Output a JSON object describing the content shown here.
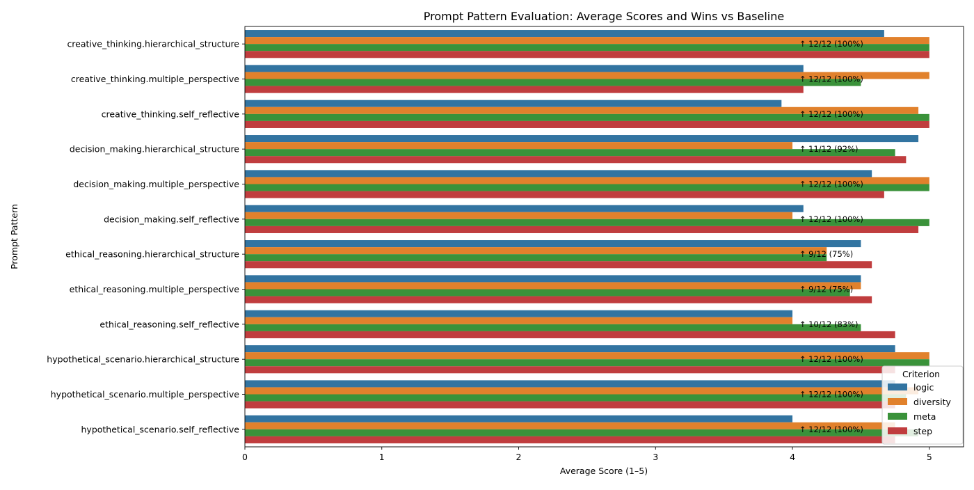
{
  "chart_data": {
    "type": "bar",
    "orientation": "horizontal",
    "title": "Prompt Pattern Evaluation: Average Scores and Wins vs Baseline",
    "xlabel": "Average Score (1–5)",
    "ylabel": "Prompt Pattern",
    "xlim": [
      0,
      5.25
    ],
    "xticks": [
      "0",
      "1",
      "2",
      "3",
      "4",
      "5"
    ],
    "grid": false,
    "legend": {
      "title": "Criterion",
      "position": "lower-right"
    },
    "categories": [
      "creative_thinking.hierarchical_structure",
      "creative_thinking.multiple_perspective",
      "creative_thinking.self_reflective",
      "decision_making.hierarchical_structure",
      "decision_making.multiple_perspective",
      "decision_making.self_reflective",
      "ethical_reasoning.hierarchical_structure",
      "ethical_reasoning.multiple_perspective",
      "ethical_reasoning.self_reflective",
      "hypothetical_scenario.hierarchical_structure",
      "hypothetical_scenario.multiple_perspective",
      "hypothetical_scenario.self_reflective"
    ],
    "series": [
      {
        "name": "logic",
        "color": "#3274a1",
        "values": [
          4.67,
          4.08,
          3.92,
          4.92,
          4.58,
          4.08,
          4.5,
          4.5,
          4.0,
          4.75,
          4.75,
          4.0
        ]
      },
      {
        "name": "diversity",
        "color": "#e1812c",
        "values": [
          5.0,
          5.0,
          4.92,
          4.0,
          5.0,
          4.0,
          4.25,
          4.5,
          4.0,
          5.0,
          4.92,
          4.75
        ]
      },
      {
        "name": "meta",
        "color": "#3a923a",
        "values": [
          5.0,
          4.5,
          5.0,
          4.75,
          5.0,
          5.0,
          4.25,
          4.42,
          4.5,
          5.0,
          4.83,
          4.92
        ]
      },
      {
        "name": "step",
        "color": "#c03d3e",
        "values": [
          5.0,
          4.08,
          5.0,
          4.83,
          4.67,
          4.92,
          4.58,
          4.58,
          4.75,
          4.75,
          4.75,
          4.75
        ]
      }
    ],
    "annotations": [
      "↑ 12/12 (100%)",
      "↑ 12/12 (100%)",
      "↑ 12/12 (100%)",
      "↑ 11/12 (92%)",
      "↑ 12/12 (100%)",
      "↑ 12/12 (100%)",
      "↑ 9/12 (75%)",
      "↑ 9/12 (75%)",
      "↑ 10/12 (83%)",
      "↑ 12/12 (100%)",
      "↑ 12/12 (100%)",
      "↑ 12/12 (100%)"
    ],
    "annotation_x": 4.05
  }
}
